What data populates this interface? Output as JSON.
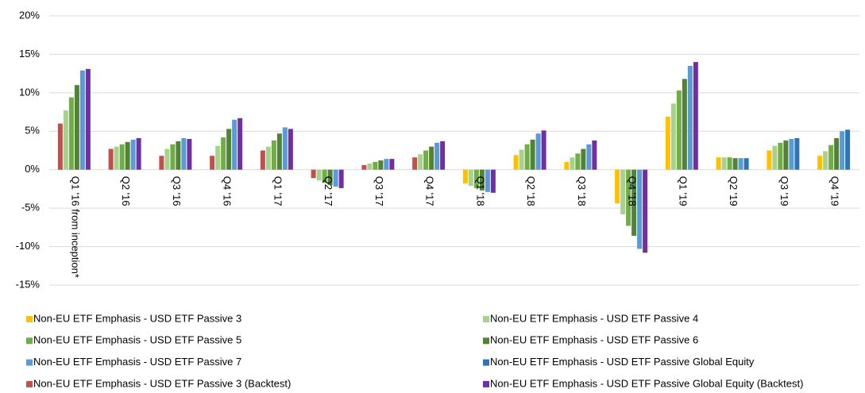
{
  "chart_data": {
    "type": "bar",
    "categories": [
      "Q1 '16 from inception*",
      "Q2 '16",
      "Q3 '16",
      "Q4 '16",
      "Q1 '17",
      "Q2 '17",
      "Q3 '17",
      "Q4 '17",
      "Q1 '18",
      "Q2 '18",
      "Q3 '18",
      "Q4 '18",
      "Q1 '19",
      "Q2 '19",
      "Q3 '19",
      "Q4 '19"
    ],
    "series": [
      {
        "name": "Non-EU ETF Emphasis - USD ETF Passive 3",
        "color": "#ffc000",
        "values": [
          null,
          null,
          null,
          null,
          null,
          null,
          null,
          null,
          -1.8,
          1.9,
          1.0,
          -4.4,
          6.9,
          1.6,
          2.5,
          1.8
        ]
      },
      {
        "name": "Non-EU ETF Emphasis - USD ETF Passive 4",
        "color": "#a9d18e",
        "values": [
          7.7,
          3.0,
          2.7,
          3.1,
          3.0,
          -1.4,
          0.8,
          2.0,
          -2.1,
          2.6,
          1.6,
          -5.8,
          8.6,
          1.6,
          3.1,
          2.4
        ]
      },
      {
        "name": "Non-EU ETF Emphasis - USD ETF Passive 5",
        "color": "#70ad47",
        "values": [
          9.4,
          3.3,
          3.3,
          4.2,
          3.8,
          -1.7,
          1.0,
          2.5,
          -2.4,
          3.3,
          2.1,
          -7.3,
          10.3,
          1.6,
          3.5,
          3.2
        ]
      },
      {
        "name": "Non-EU ETF Emphasis - USD ETF Passive 6",
        "color": "#548235",
        "values": [
          11.0,
          3.6,
          3.7,
          5.3,
          4.7,
          -2.0,
          1.2,
          3.0,
          -2.7,
          3.9,
          2.7,
          -8.6,
          11.8,
          1.5,
          3.8,
          4.1
        ]
      },
      {
        "name": "Non-EU ETF Emphasis - USD ETF Passive 7",
        "color": "#5b9bd5",
        "values": [
          12.9,
          3.9,
          4.1,
          6.5,
          5.5,
          -2.2,
          1.4,
          3.5,
          -2.9,
          4.7,
          3.3,
          -10.3,
          13.5,
          1.5,
          4.0,
          5.0
        ]
      },
      {
        "name": "Non-EU ETF Emphasis - USD ETF Passive Global Equity",
        "color": "#2e75b6",
        "values": [
          null,
          null,
          null,
          null,
          null,
          null,
          null,
          null,
          null,
          null,
          null,
          null,
          null,
          1.5,
          4.1,
          5.2
        ]
      },
      {
        "name": "Non-EU ETF Emphasis - USD ETF Passive 3 (Backtest)",
        "color": "#c0504d",
        "values": [
          6.0,
          2.7,
          1.8,
          1.8,
          2.5,
          -1.1,
          0.6,
          1.6,
          null,
          null,
          null,
          null,
          null,
          null,
          null,
          null
        ]
      },
      {
        "name": "Non-EU ETF Emphasis - USD ETF Passive Global Equity (Backtest)",
        "color": "#7030a0",
        "values": [
          13.1,
          4.1,
          4.0,
          6.7,
          5.3,
          -2.4,
          1.4,
          3.7,
          -3.0,
          5.1,
          3.8,
          -10.8,
          14.0,
          null,
          null,
          null
        ]
      }
    ],
    "ylim": [
      -15,
      20
    ],
    "yticks": [
      {
        "value": -15,
        "label": "-15%"
      },
      {
        "value": -10,
        "label": "-10%"
      },
      {
        "value": -5,
        "label": "-5%"
      },
      {
        "value": 0,
        "label": "0%"
      },
      {
        "value": 5,
        "label": "5%"
      },
      {
        "value": 10,
        "label": "10%"
      },
      {
        "value": 15,
        "label": "15%"
      },
      {
        "value": 20,
        "label": "20%"
      }
    ],
    "grid": true
  }
}
